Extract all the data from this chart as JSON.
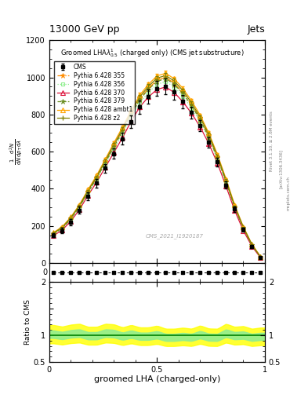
{
  "title_top": "13000 GeV pp",
  "title_right": "Jets",
  "plot_title": "Groomed LHA$\\lambda^1_{0.5}$ (charged only) (CMS jet substructure)",
  "xlabel": "groomed LHA (charged-only)",
  "watermark": "CMS_2021_I1920187",
  "rivet_text": "Rivet 3.1.10, ≥ 2.6M events",
  "arxiv_text": "[arXiv:1306.3436]",
  "mcplots_text": "mcplots.cern.ch",
  "x_data": [
    0.02,
    0.06,
    0.1,
    0.14,
    0.18,
    0.22,
    0.26,
    0.3,
    0.34,
    0.38,
    0.42,
    0.46,
    0.5,
    0.54,
    0.58,
    0.62,
    0.66,
    0.7,
    0.74,
    0.78,
    0.82,
    0.86,
    0.9,
    0.94,
    0.98
  ],
  "cms_data": [
    150,
    175,
    220,
    285,
    360,
    430,
    510,
    590,
    670,
    760,
    840,
    895,
    940,
    950,
    920,
    870,
    810,
    740,
    650,
    545,
    420,
    290,
    180,
    90,
    30
  ],
  "cms_errors": [
    12,
    14,
    16,
    18,
    20,
    22,
    25,
    28,
    30,
    33,
    36,
    38,
    40,
    42,
    40,
    37,
    33,
    30,
    27,
    23,
    19,
    15,
    12,
    9,
    6
  ],
  "p355_data": [
    160,
    190,
    240,
    305,
    385,
    460,
    545,
    630,
    715,
    805,
    885,
    942,
    985,
    1000,
    968,
    918,
    852,
    775,
    682,
    568,
    440,
    302,
    190,
    98,
    33
  ],
  "p356_data": [
    155,
    185,
    234,
    298,
    376,
    449,
    532,
    615,
    698,
    786,
    864,
    920,
    962,
    978,
    948,
    898,
    835,
    760,
    668,
    556,
    430,
    295,
    185,
    95,
    31
  ],
  "p370_data": [
    148,
    178,
    226,
    288,
    365,
    436,
    516,
    596,
    676,
    764,
    841,
    895,
    935,
    948,
    918,
    868,
    806,
    733,
    643,
    537,
    413,
    283,
    175,
    90,
    29
  ],
  "p379_data": [
    158,
    188,
    238,
    303,
    382,
    457,
    541,
    626,
    710,
    800,
    880,
    936,
    978,
    994,
    962,
    912,
    848,
    771,
    678,
    565,
    437,
    300,
    188,
    96,
    32
  ],
  "pambt1_data": [
    165,
    196,
    248,
    315,
    396,
    473,
    560,
    648,
    733,
    823,
    905,
    963,
    1008,
    1022,
    992,
    940,
    874,
    796,
    700,
    585,
    453,
    313,
    196,
    102,
    35
  ],
  "pz2_data": [
    162,
    192,
    244,
    310,
    390,
    466,
    552,
    638,
    723,
    814,
    895,
    952,
    996,
    1010,
    980,
    928,
    862,
    785,
    692,
    577,
    446,
    307,
    193,
    100,
    33
  ],
  "ratio_band_green_lo": 0.93,
  "ratio_band_green_hi": 1.07,
  "ratio_band_yellow_lo": 0.83,
  "ratio_band_yellow_hi": 1.17,
  "colors": {
    "p355": "#FF8C00",
    "p356": "#90EE90",
    "p370": "#DC143C",
    "p379": "#6B8E23",
    "pambt1": "#FFA500",
    "pz2": "#808000"
  },
  "xlim": [
    0.0,
    1.0
  ],
  "ylim_main": [
    0,
    1200
  ],
  "ylim_ratio": [
    0.5,
    2.0
  ],
  "yticks_main": [
    0,
    200,
    400,
    600,
    800,
    1000,
    1200
  ],
  "ytick_labels_main": [
    "0",
    "200",
    "400",
    "600",
    "800",
    "1000",
    "1200"
  ]
}
